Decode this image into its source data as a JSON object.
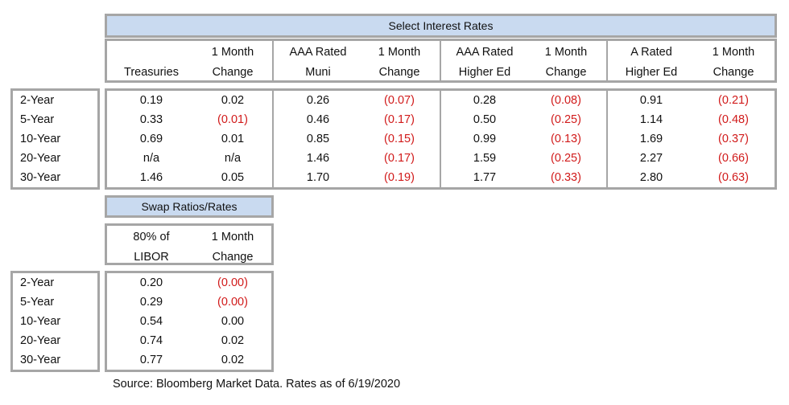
{
  "rates": {
    "title": "Select Interest Rates",
    "headers": [
      {
        "line1": "",
        "line2": "Treasuries"
      },
      {
        "line1": "1 Month",
        "line2": "Change"
      },
      {
        "line1": "AAA Rated",
        "line2": "Muni"
      },
      {
        "line1": "1 Month",
        "line2": "Change"
      },
      {
        "line1": "AAA Rated",
        "line2": "Higher Ed"
      },
      {
        "line1": "1 Month",
        "line2": "Change"
      },
      {
        "line1": "A Rated",
        "line2": "Higher Ed"
      },
      {
        "line1": "1 Month",
        "line2": "Change"
      }
    ],
    "rows": [
      {
        "label": "2-Year",
        "values": [
          "0.19",
          "0.02",
          "0.26",
          "(0.07)",
          "0.28",
          "(0.08)",
          "0.91",
          "(0.21)"
        ]
      },
      {
        "label": "5-Year",
        "values": [
          "0.33",
          "(0.01)",
          "0.46",
          "(0.17)",
          "0.50",
          "(0.25)",
          "1.14",
          "(0.48)"
        ]
      },
      {
        "label": "10-Year",
        "values": [
          "0.69",
          "0.01",
          "0.85",
          "(0.15)",
          "0.99",
          "(0.13)",
          "1.69",
          "(0.37)"
        ]
      },
      {
        "label": "20-Year",
        "values": [
          "n/a",
          "n/a",
          "1.46",
          "(0.17)",
          "1.59",
          "(0.25)",
          "2.27",
          "(0.66)"
        ]
      },
      {
        "label": "30-Year",
        "values": [
          "1.46",
          "0.05",
          "1.70",
          "(0.19)",
          "1.77",
          "(0.33)",
          "2.80",
          "(0.63)"
        ]
      }
    ]
  },
  "swaps": {
    "title": "Swap Ratios/Rates",
    "headers": [
      {
        "line1": "80% of",
        "line2": "LIBOR"
      },
      {
        "line1": "1 Month",
        "line2": "Change"
      }
    ],
    "rows": [
      {
        "label": "2-Year",
        "values": [
          "0.20",
          "(0.00)"
        ]
      },
      {
        "label": "5-Year",
        "values": [
          "0.29",
          "(0.00)"
        ]
      },
      {
        "label": "10-Year",
        "values": [
          "0.54",
          "0.00"
        ]
      },
      {
        "label": "20-Year",
        "values": [
          "0.74",
          "0.02"
        ]
      },
      {
        "label": "30-Year",
        "values": [
          "0.77",
          "0.02"
        ]
      }
    ]
  },
  "colors": {
    "negative": "#d11a1a",
    "title_fill": "#c9daf0",
    "border": "#a6a6a6"
  },
  "source": "Source: Bloomberg Market Data. Rates as of 6/19/2020"
}
